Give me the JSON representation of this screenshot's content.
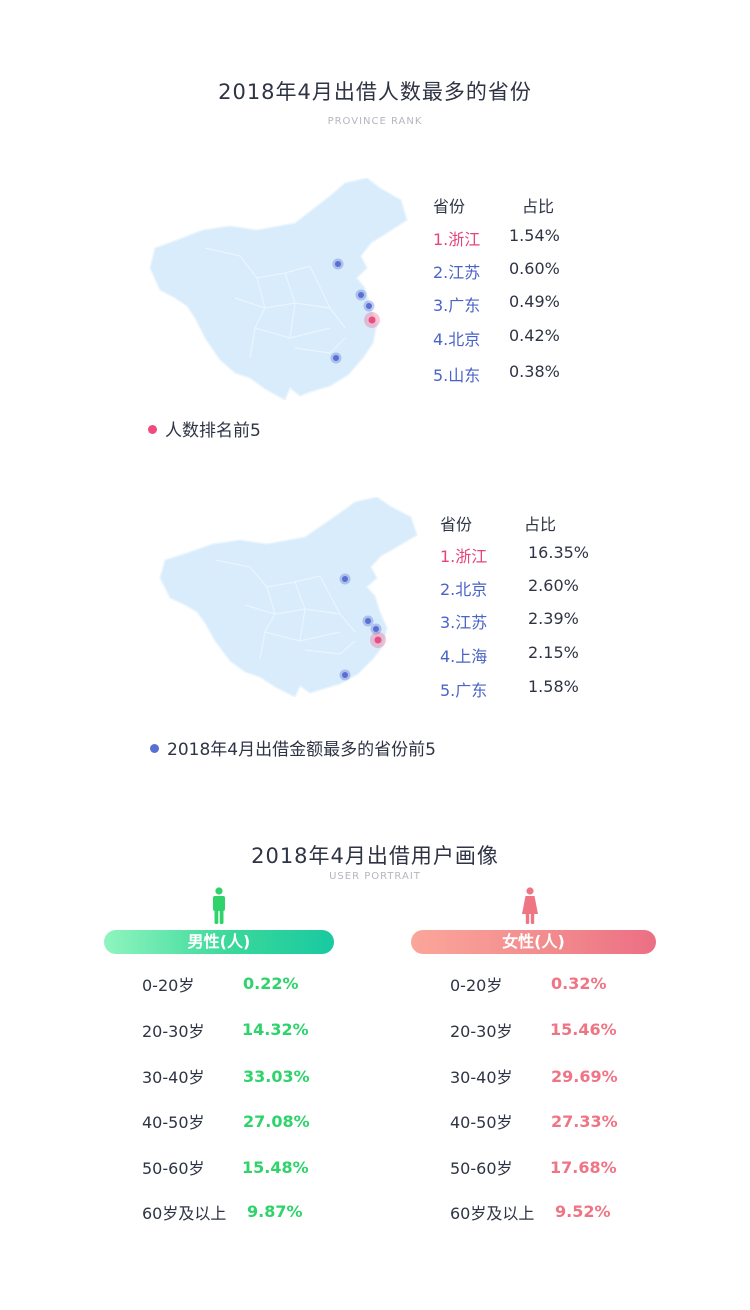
{
  "section1": {
    "title": "2018年4月出借人数最多的省份",
    "subtitle": "PROVINCE RANK",
    "header": {
      "province": "省份",
      "share": "占比"
    },
    "rows": [
      {
        "name": "1.浙江",
        "value": "1.54%"
      },
      {
        "name": "2.江苏",
        "value": "0.60%"
      },
      {
        "name": "3.广东",
        "value": "0.49%"
      },
      {
        "name": "4.北京",
        "value": "0.42%"
      },
      {
        "name": "5.山东",
        "value": "0.38%"
      }
    ],
    "legend": "人数排名前5",
    "legend_color": "#ef4b7f"
  },
  "section2": {
    "header": {
      "province": "省份",
      "share": "占比"
    },
    "rows": [
      {
        "name": "1.浙江",
        "value": "16.35%"
      },
      {
        "name": "2.北京",
        "value": "2.60%"
      },
      {
        "name": "3.江苏",
        "value": "2.39%"
      },
      {
        "name": "4.上海",
        "value": "2.15%"
      },
      {
        "name": "5.广东",
        "value": "1.58%"
      }
    ],
    "legend": "2018年4月出借金额最多的省份前5",
    "legend_color": "#5a6fd2"
  },
  "section3": {
    "title": "2018年4月出借用户画像",
    "subtitle": "USER PORTRAIT",
    "male": {
      "label": "男性(人)",
      "color": "#1fd27c",
      "rows": [
        {
          "age": "0-20岁",
          "pct": "0.22%"
        },
        {
          "age": "20-30岁",
          "pct": "14.32%"
        },
        {
          "age": "30-40岁",
          "pct": "33.03%"
        },
        {
          "age": "40-50岁",
          "pct": "27.08%"
        },
        {
          "age": "50-60岁",
          "pct": "15.48%"
        },
        {
          "age": "60岁及以上",
          "pct": "9.87%"
        }
      ]
    },
    "female": {
      "label": "女性(人)",
      "color": "#ef7585",
      "rows": [
        {
          "age": "0-20岁",
          "pct": "0.32%"
        },
        {
          "age": "20-30岁",
          "pct": "15.46%"
        },
        {
          "age": "30-40岁",
          "pct": "29.69%"
        },
        {
          "age": "40-50岁",
          "pct": "27.33%"
        },
        {
          "age": "50-60岁",
          "pct": "17.68%"
        },
        {
          "age": "60岁及以上",
          "pct": "9.52%"
        }
      ]
    }
  },
  "colors": {
    "map_fill": "#d8ecfb",
    "map_border": "#eaf5fd",
    "marker_blue": "#5a6fd2",
    "marker_pink": "#ef4b7f"
  }
}
